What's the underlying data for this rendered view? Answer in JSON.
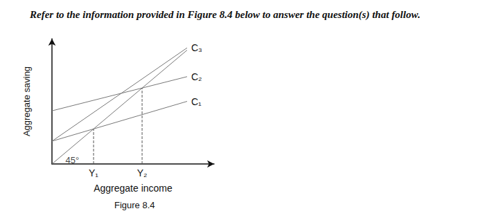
{
  "chart_data": {
    "type": "line",
    "title": "Refer to the information provided in Figure 8.4 below to answer the question(s) that follow.",
    "subtitle": "Figure 8.4",
    "x_label": "Aggregate income",
    "y_label": "Aggregate saving",
    "xlim": [
      0,
      12
    ],
    "ylim": [
      0,
      11
    ],
    "xticks": [
      {
        "value": 3.08,
        "label": "Y₁"
      },
      {
        "value": 6.67,
        "label": "Y₂"
      }
    ],
    "yticks": [],
    "tick_labels": "x",
    "grid": false,
    "series": [
      {
        "name": "C₃",
        "color": "#777777",
        "x": [
          0,
          10
        ],
        "values": [
          2,
          10.2
        ]
      },
      {
        "name": "C₂",
        "color": "#777777",
        "x": [
          0,
          10
        ],
        "values": [
          4.67,
          7.67
        ]
      },
      {
        "name": "C₁",
        "color": "#777777",
        "x": [
          0,
          10
        ],
        "values": [
          2,
          5.5
        ]
      },
      {
        "color": "#777777",
        "x": [
          0,
          10
        ],
        "values": [
          0,
          10
        ]
      }
    ],
    "guides": [
      {
        "x": 3.08,
        "y": 3.08,
        "line_style": "dashed"
      },
      {
        "x": 6.67,
        "y": 6.67,
        "line_style": "dashed"
      }
    ],
    "annotations": [
      {
        "text": "45°",
        "x": 1.5,
        "y": 0.35
      }
    ]
  }
}
